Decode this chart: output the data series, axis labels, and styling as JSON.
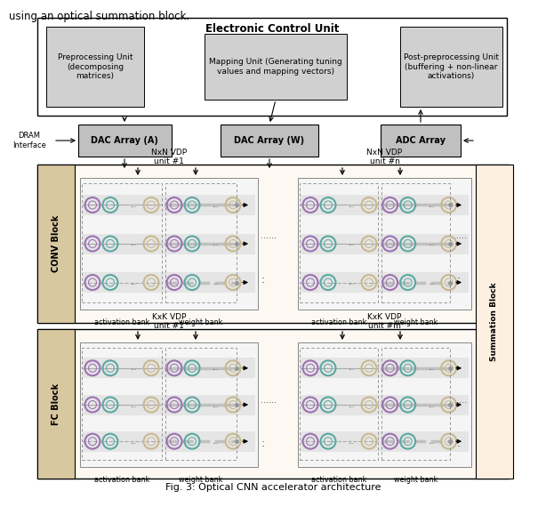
{
  "title": "Fig. 3: Optical CNN accelerator architecture",
  "bg_color": "#ffffff",
  "top_text": "using an optical summation block.",
  "ecu_label": "Electronic Control Unit",
  "preproc_label": "Preprocessing Unit\n(decomposing\nmatrices)",
  "mapping_label": "Mapping Unit (Generating tuning\nvalues and mapping vectors)",
  "postproc_label": "Post-preprocessing Unit\n(buffering + non-linear\nactivations)",
  "dac_a_label": "DAC Array (A)",
  "dac_w_label": "DAC Array (W)",
  "adc_label": "ADC Array",
  "dram_label": "DRAM\nInterface",
  "conv_label": "CONV Block",
  "fc_label": "FC Block",
  "summ_label": "Summation Block",
  "conv_vdp1_label": "NxN VDP\nunit #1",
  "conv_vdpn_label": "NxN VDP\nunit #n",
  "fc_vdp1_label": "KxK VDP\nunit #1",
  "fc_vdpm_label": "KxK VDP\nunit #m",
  "act_bank_label": "activation bank",
  "wt_bank_label": "weight bank",
  "ring_act_colors": [
    "#9B72B0",
    "#5BA8A0",
    "#c8c0d8",
    "#d4c4a0"
  ],
  "ring_wt_colors": [
    "#9B72B0",
    "#5BA8A0",
    "#c8c0d8",
    "#d4c4a0"
  ],
  "gray_fill": "#d0d0d0",
  "dgray_fill": "#c0c0c0",
  "tan_fill": "#d8c8a0",
  "light_tan": "#f5efe0",
  "vlight_tan": "#fdf8f2",
  "white": "#ffffff",
  "black": "#000000"
}
